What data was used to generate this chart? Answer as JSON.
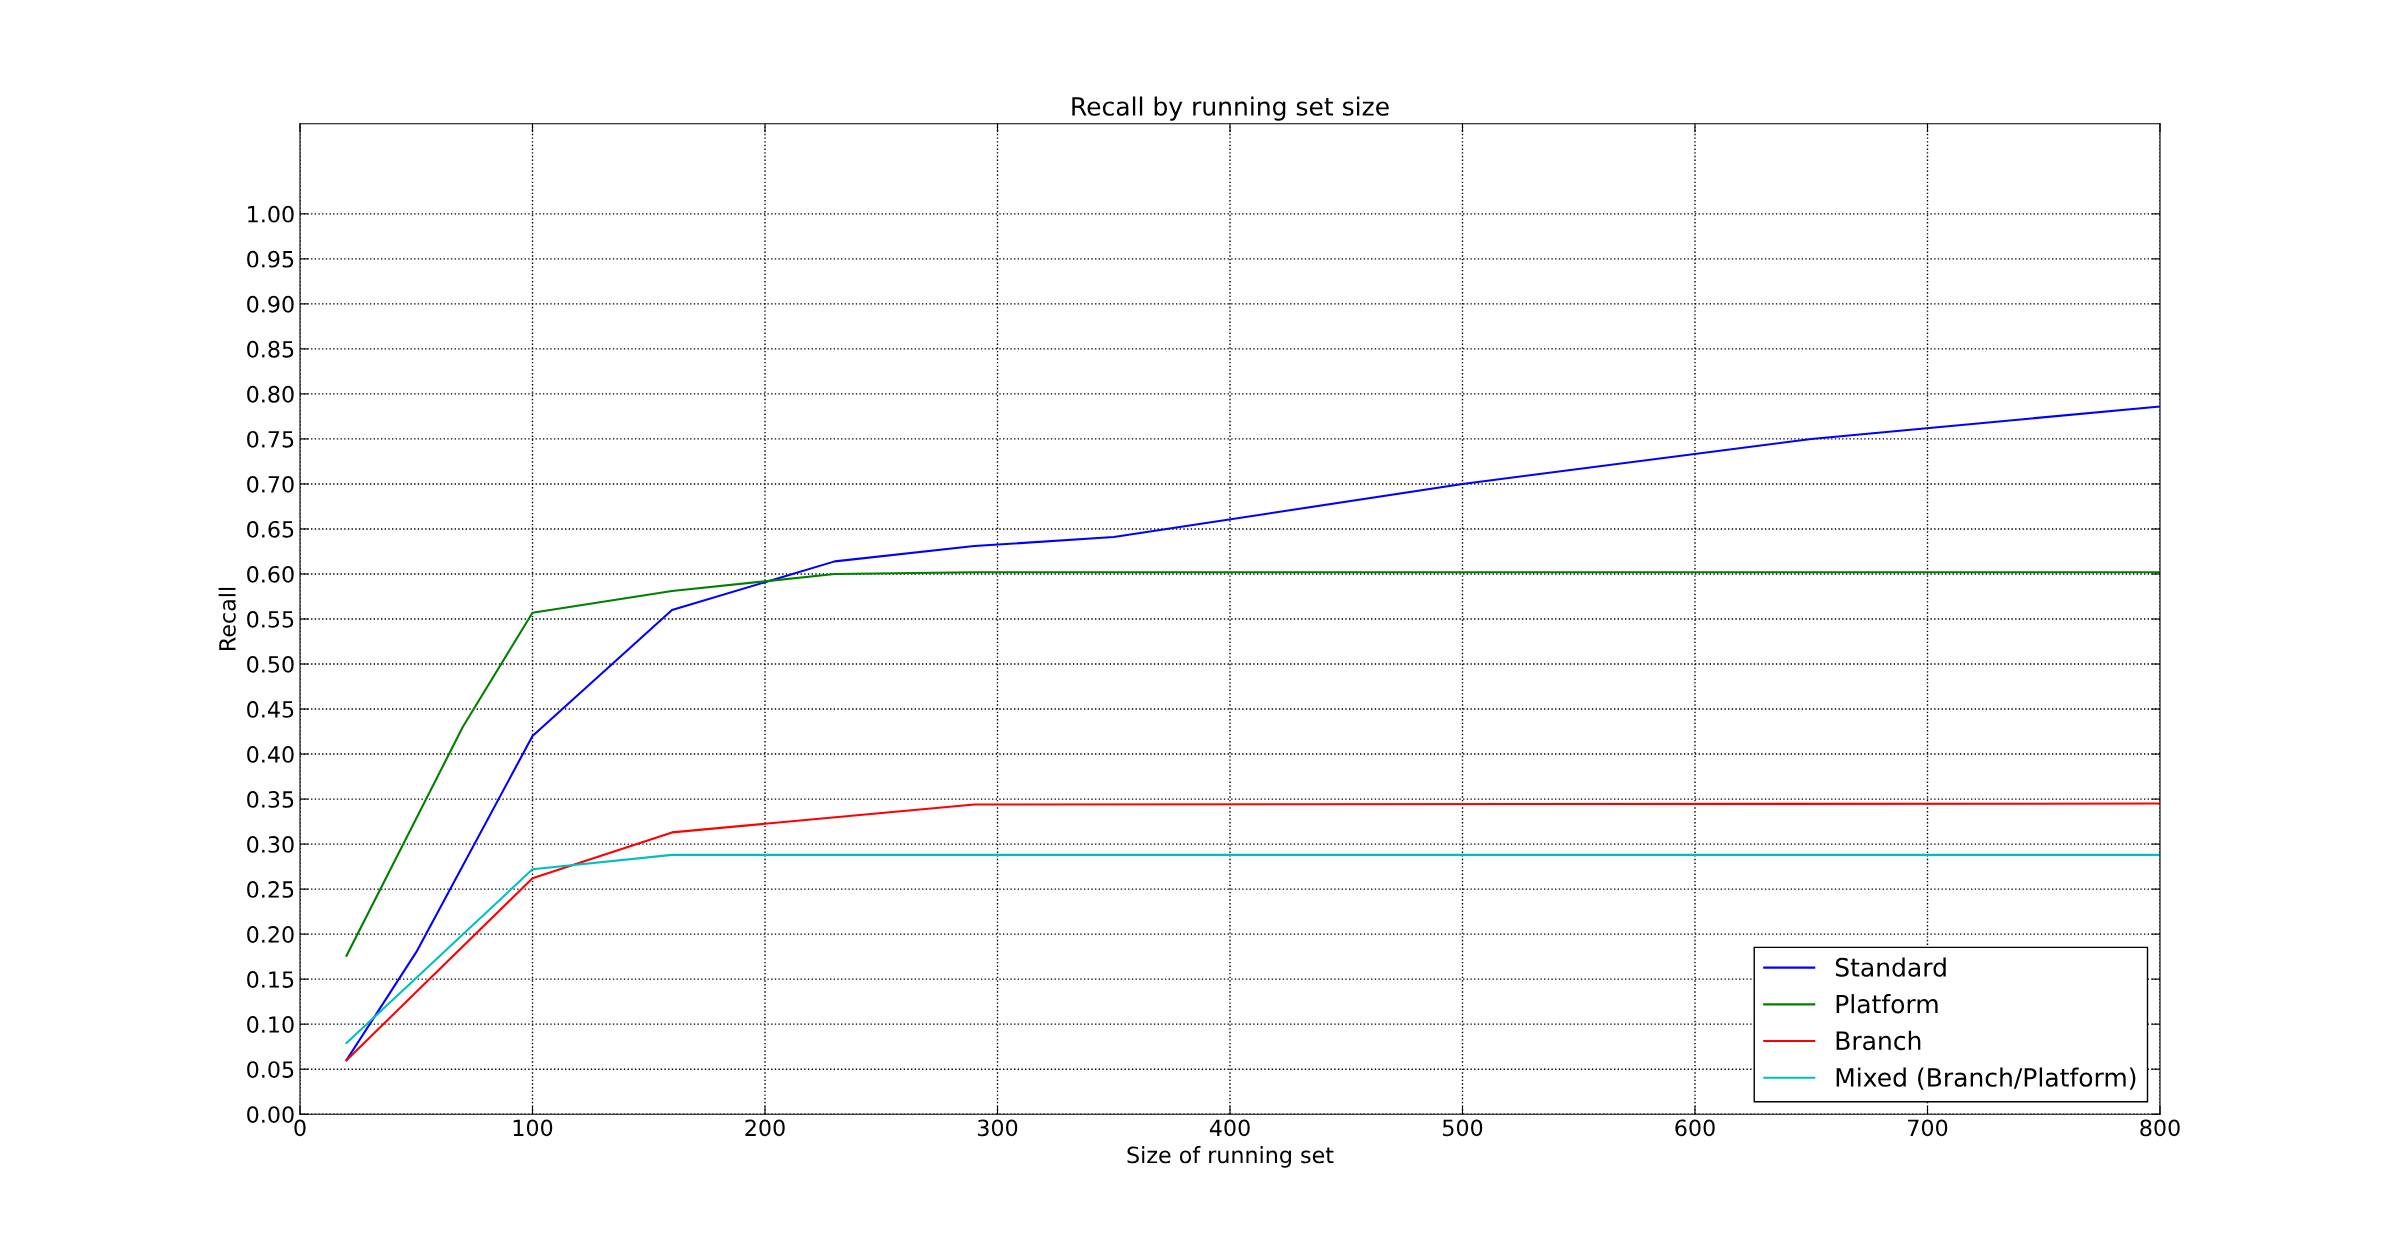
{
  "chart_data": {
    "type": "line",
    "title": "Recall by running set size",
    "xlabel": "Size of running set",
    "ylabel": "Recall",
    "xlim": [
      0,
      800
    ],
    "xticks": [
      0,
      100,
      200,
      300,
      400,
      500,
      600,
      700,
      800
    ],
    "ylim": [
      0,
      1.1
    ],
    "yticks": [
      {
        "value": 0,
        "label": "0.00"
      },
      {
        "value": 0.05,
        "label": "0.05"
      },
      {
        "value": 0.1,
        "label": "0.10"
      },
      {
        "value": 0.15,
        "label": "0.15"
      },
      {
        "value": 0.2,
        "label": "0.20"
      },
      {
        "value": 0.25,
        "label": "0.25"
      },
      {
        "value": 0.3,
        "label": "0.30"
      },
      {
        "value": 0.35,
        "label": "0.35"
      },
      {
        "value": 0.4,
        "label": "0.40"
      },
      {
        "value": 0.45,
        "label": "0.45"
      },
      {
        "value": 0.5,
        "label": "0.50"
      },
      {
        "value": 0.55,
        "label": "0.55"
      },
      {
        "value": 0.6,
        "label": "0.60"
      },
      {
        "value": 0.65,
        "label": "0.65"
      },
      {
        "value": 0.7,
        "label": "0.70"
      },
      {
        "value": 0.75,
        "label": "0.75"
      },
      {
        "value": 0.8,
        "label": "0.80"
      },
      {
        "value": 0.85,
        "label": "0.85"
      },
      {
        "value": 0.9,
        "label": "0.90"
      },
      {
        "value": 0.95,
        "label": "0.95"
      },
      {
        "value": 1.0,
        "label": "1.00"
      }
    ],
    "grid": true,
    "legend": "bottom right",
    "marker": "none",
    "line_style": "solid",
    "series": [
      {
        "name": "Standard",
        "color": "#0000ff",
        "x": [
          20,
          50,
          100,
          160,
          230,
          290,
          350,
          500,
          650,
          800
        ],
        "values": [
          0.06,
          0.18,
          0.42,
          0.56,
          0.614,
          0.631,
          0.641,
          0.7,
          0.75,
          0.786
        ]
      },
      {
        "name": "Platform",
        "color": "#008000",
        "x": [
          20,
          70,
          100,
          160,
          230,
          290,
          800
        ],
        "values": [
          0.176,
          0.43,
          0.557,
          0.581,
          0.6,
          0.602,
          0.602
        ]
      },
      {
        "name": "Branch",
        "color": "#ff0000",
        "x": [
          20,
          100,
          160,
          290,
          800
        ],
        "values": [
          0.06,
          0.262,
          0.313,
          0.344,
          0.345
        ]
      },
      {
        "name": "Mixed (Branch/Platform)",
        "color": "#00bfbf",
        "x": [
          20,
          100,
          160,
          800
        ],
        "values": [
          0.079,
          0.272,
          0.288,
          0.288
        ]
      }
    ]
  }
}
